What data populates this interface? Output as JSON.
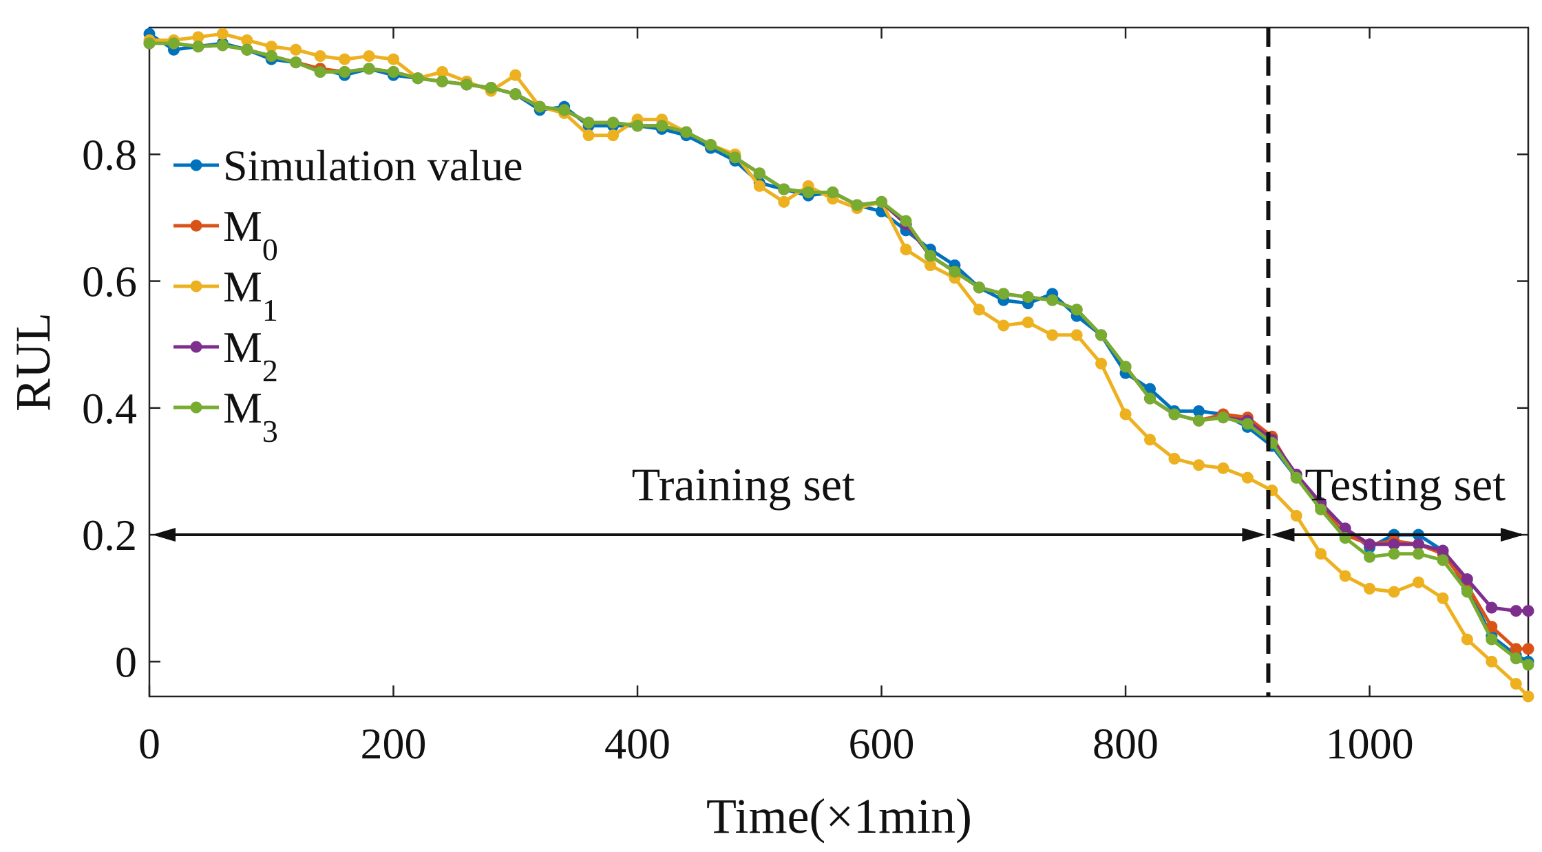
{
  "chart_data": {
    "type": "line",
    "title": "",
    "xlabel": "Time(×1min)",
    "ylabel": "RUL",
    "xlim": [
      0,
      1130
    ],
    "ylim": [
      -0.055,
      1.0
    ],
    "xticks": [
      0,
      200,
      400,
      600,
      800,
      1000
    ],
    "xtick_labels": [
      "0",
      "200",
      "400",
      "600",
      "800",
      "1000"
    ],
    "yticks": [
      0,
      0.2,
      0.4,
      0.6,
      0.8
    ],
    "ytick_labels": [
      "0",
      "0.2",
      "0.4",
      "0.6",
      "0.8"
    ],
    "grid": false,
    "legend_placement": "upper-left",
    "split_x": 917,
    "annotations": {
      "training": "Training set",
      "testing": "Testing set",
      "arrow_y": 0.2
    },
    "x": [
      0,
      20,
      40,
      60,
      80,
      100,
      120,
      140,
      160,
      180,
      200,
      220,
      240,
      260,
      280,
      300,
      320,
      340,
      360,
      380,
      400,
      420,
      440,
      460,
      480,
      500,
      520,
      540,
      560,
      580,
      600,
      620,
      640,
      660,
      680,
      700,
      720,
      740,
      760,
      780,
      800,
      820,
      840,
      860,
      880,
      900,
      920,
      940,
      960,
      980,
      1000,
      1020,
      1040,
      1060,
      1080,
      1100,
      1120,
      1130
    ],
    "series": [
      {
        "name": "Simulation value",
        "legend_main": "Simulation value",
        "legend_sub": "",
        "color": "#0072BD",
        "values": [
          0.99,
          0.965,
          0.97,
          0.975,
          0.965,
          0.95,
          0.945,
          0.935,
          0.925,
          0.935,
          0.925,
          0.92,
          0.915,
          0.91,
          0.905,
          0.895,
          0.87,
          0.875,
          0.845,
          0.845,
          0.845,
          0.84,
          0.83,
          0.81,
          0.79,
          0.755,
          0.745,
          0.735,
          0.74,
          0.72,
          0.71,
          0.68,
          0.65,
          0.625,
          0.59,
          0.57,
          0.565,
          0.58,
          0.545,
          0.515,
          0.455,
          0.43,
          0.395,
          0.395,
          0.39,
          0.37,
          0.34,
          0.29,
          0.25,
          0.21,
          0.18,
          0.2,
          0.2,
          0.175,
          0.115,
          0.04,
          0.01,
          0.0
        ]
      },
      {
        "name": "M0",
        "legend_main": "M",
        "legend_sub": "0",
        "color": "#D95319",
        "values": [
          0.975,
          0.975,
          0.97,
          0.972,
          0.965,
          0.955,
          0.945,
          0.935,
          0.93,
          0.935,
          0.93,
          0.92,
          0.915,
          0.91,
          0.905,
          0.895,
          0.875,
          0.87,
          0.85,
          0.85,
          0.845,
          0.845,
          0.835,
          0.815,
          0.795,
          0.77,
          0.745,
          0.74,
          0.74,
          0.72,
          0.725,
          0.69,
          0.64,
          0.615,
          0.59,
          0.58,
          0.575,
          0.57,
          0.555,
          0.515,
          0.465,
          0.415,
          0.39,
          0.38,
          0.39,
          0.385,
          0.355,
          0.29,
          0.245,
          0.2,
          0.185,
          0.19,
          0.185,
          0.17,
          0.12,
          0.055,
          0.02,
          0.02
        ]
      },
      {
        "name": "M1",
        "legend_main": "M",
        "legend_sub": "1",
        "color": "#EDB120",
        "values": [
          0.98,
          0.98,
          0.985,
          0.99,
          0.98,
          0.97,
          0.965,
          0.955,
          0.95,
          0.955,
          0.95,
          0.92,
          0.93,
          0.915,
          0.9,
          0.925,
          0.875,
          0.865,
          0.83,
          0.83,
          0.855,
          0.855,
          0.835,
          0.815,
          0.8,
          0.75,
          0.725,
          0.75,
          0.73,
          0.715,
          0.725,
          0.65,
          0.625,
          0.605,
          0.555,
          0.53,
          0.535,
          0.515,
          0.515,
          0.47,
          0.39,
          0.35,
          0.32,
          0.31,
          0.305,
          0.29,
          0.27,
          0.23,
          0.17,
          0.135,
          0.115,
          0.11,
          0.125,
          0.1,
          0.035,
          0.0,
          -0.035,
          -0.055
        ]
      },
      {
        "name": "M2",
        "legend_main": "M",
        "legend_sub": "2",
        "color": "#7E2F8E",
        "values": [
          0.975,
          0.975,
          0.97,
          0.972,
          0.965,
          0.955,
          0.945,
          0.93,
          0.93,
          0.935,
          0.93,
          0.92,
          0.915,
          0.91,
          0.905,
          0.895,
          0.875,
          0.87,
          0.85,
          0.85,
          0.845,
          0.845,
          0.835,
          0.815,
          0.795,
          0.77,
          0.745,
          0.74,
          0.74,
          0.72,
          0.725,
          0.69,
          0.64,
          0.615,
          0.59,
          0.58,
          0.575,
          0.57,
          0.555,
          0.515,
          0.465,
          0.415,
          0.39,
          0.38,
          0.385,
          0.38,
          0.35,
          0.295,
          0.25,
          0.21,
          0.185,
          0.185,
          0.185,
          0.175,
          0.13,
          0.085,
          0.08,
          0.08
        ]
      },
      {
        "name": "M3",
        "legend_main": "M",
        "legend_sub": "3",
        "color": "#77AC30",
        "values": [
          0.975,
          0.975,
          0.97,
          0.972,
          0.965,
          0.955,
          0.945,
          0.93,
          0.93,
          0.935,
          0.93,
          0.92,
          0.915,
          0.91,
          0.905,
          0.895,
          0.875,
          0.87,
          0.85,
          0.85,
          0.845,
          0.845,
          0.835,
          0.815,
          0.795,
          0.77,
          0.745,
          0.74,
          0.74,
          0.72,
          0.725,
          0.695,
          0.64,
          0.615,
          0.59,
          0.58,
          0.575,
          0.57,
          0.555,
          0.515,
          0.465,
          0.415,
          0.39,
          0.38,
          0.385,
          0.375,
          0.345,
          0.29,
          0.24,
          0.195,
          0.165,
          0.17,
          0.17,
          0.16,
          0.11,
          0.035,
          0.005,
          -0.005
        ]
      }
    ]
  }
}
